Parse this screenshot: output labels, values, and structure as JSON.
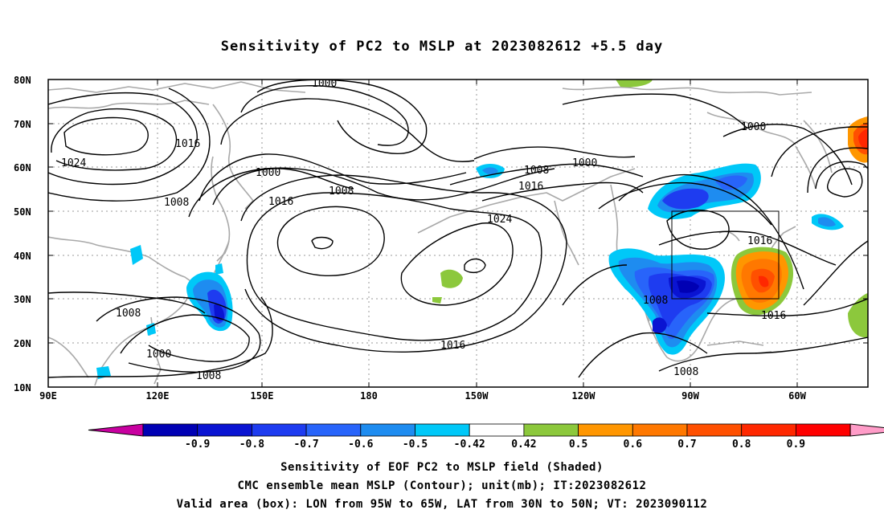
{
  "title": "Sensitivity of PC2 to MSLP at 2023082612 +5.5 day",
  "map": {
    "lat_labels": [
      "80N",
      "70N",
      "60N",
      "50N",
      "40N",
      "30N",
      "20N",
      "10N"
    ],
    "lon_labels": [
      "90E",
      "120E",
      "150E",
      "180",
      "150W",
      "120W",
      "90W",
      "60W"
    ],
    "contour_labels": [
      {
        "text": "1000"
      },
      {
        "text": "1016"
      },
      {
        "text": "1024"
      },
      {
        "text": "1008"
      },
      {
        "text": "1000"
      },
      {
        "text": "1016"
      },
      {
        "text": "1008"
      },
      {
        "text": "1008"
      },
      {
        "text": "1016"
      },
      {
        "text": "1024"
      },
      {
        "text": "1000"
      },
      {
        "text": "1000"
      },
      {
        "text": "1016"
      },
      {
        "text": "1008"
      },
      {
        "text": "1000"
      },
      {
        "text": "1008"
      },
      {
        "text": "1016"
      },
      {
        "text": "1008"
      },
      {
        "text": "1016"
      },
      {
        "text": "1008"
      }
    ],
    "shading_colors": {
      "neg_09": "#0000b4",
      "neg_08": "#0a14d2",
      "neg_07": "#1e3cf0",
      "neg_06": "#2864fa",
      "neg_05": "#1e8cf0",
      "neg_042": "#00c8f8",
      "pos_042": "#8cc83c",
      "pos_05": "#ff9600",
      "pos_06": "#ff7800",
      "pos_07": "#ff5000",
      "pos_08": "#ff2800",
      "pos_09": "#ff0000"
    }
  },
  "colorbar": {
    "labels": [
      "-0.9",
      "-0.8",
      "-0.7",
      "-0.6",
      "-0.5",
      "-0.42",
      "0.42",
      "0.5",
      "0.6",
      "0.7",
      "0.8",
      "0.9"
    ],
    "colors": [
      "#0000b4",
      "#0a14d2",
      "#1e3cf0",
      "#2864fa",
      "#1e8cf0",
      "#00c8f8",
      "#ffffff",
      "#8cc83c",
      "#ff9600",
      "#ff7800",
      "#ff5000",
      "#ff2800",
      "#ff0000"
    ],
    "end_low": "#c800a0",
    "end_high": "#ff9cc8"
  },
  "footer": {
    "line1": "Sensitivity of EOF PC2 to MSLP field (Shaded)",
    "line2": "CMC ensemble mean MSLP (Contour); unit(mb); IT:2023082612",
    "line3": "Valid area (box): LON from 95W to 65W, LAT from 30N to 50N; VT: 2023090112"
  }
}
